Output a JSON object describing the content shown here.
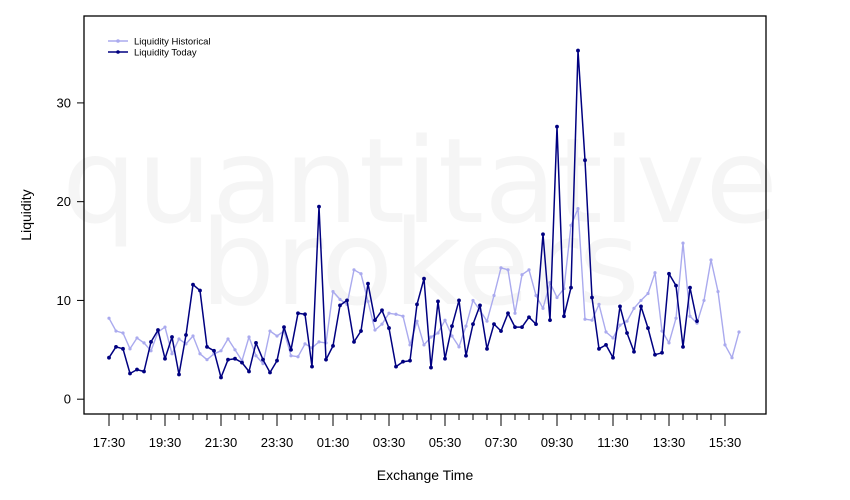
{
  "watermark": {
    "line1": "quantitative",
    "line2": "brokers"
  },
  "chart_data": {
    "type": "line",
    "xlabel": "Exchange Time",
    "ylabel": "Liquidity",
    "ylim": [
      -1.5,
      38.8
    ],
    "yticks": [
      0,
      10,
      20,
      30
    ],
    "xtick_labels": [
      "17:30",
      "19:30",
      "21:30",
      "23:30",
      "01:30",
      "03:30",
      "05:30",
      "07:30",
      "09:30",
      "11:30",
      "13:30",
      "15:30"
    ],
    "x_interval": "15min",
    "grid": false,
    "legend_position": "top-left",
    "series": [
      {
        "name": "Liquidity Historical",
        "color": "#aaaaee",
        "values": [
          8.2,
          6.9,
          6.7,
          5.1,
          6.2,
          5.7,
          4.9,
          6.8,
          7.3,
          4.6,
          6.1,
          5.6,
          6.4,
          4.6,
          4.0,
          4.6,
          4.9,
          6.1,
          5.0,
          3.9,
          6.3,
          4.4,
          3.6,
          6.9,
          6.4,
          6.9,
          4.4,
          4.3,
          5.6,
          5.2,
          5.8,
          5.7,
          10.9,
          10.1,
          9.6,
          13.1,
          12.7,
          9.9,
          7.0,
          7.6,
          8.7,
          8.6,
          8.4,
          5.5,
          7.9,
          5.5,
          6.3,
          6.7,
          8.0,
          6.4,
          5.3,
          7.4,
          10.0,
          9.0,
          7.9,
          10.5,
          13.3,
          13.1,
          8.7,
          12.6,
          13.1,
          10.5,
          9.2,
          11.8,
          10.3,
          11.2,
          17.6,
          19.3,
          8.1,
          8.0,
          9.6,
          6.8,
          6.2,
          7.5,
          7.9,
          9.2,
          10.0,
          10.7,
          12.8,
          6.9,
          5.7,
          8.2,
          15.8,
          8.4,
          7.7,
          10.0,
          14.1,
          10.9,
          5.5,
          4.2,
          6.8
        ]
      },
      {
        "name": "Liquidity Today",
        "color": "#000080",
        "values": [
          4.2,
          5.3,
          5.1,
          2.6,
          3.0,
          2.8,
          5.8,
          7.0,
          4.1,
          6.3,
          2.5,
          6.5,
          11.6,
          11.0,
          5.3,
          4.9,
          2.2,
          4.0,
          4.1,
          3.7,
          2.8,
          5.7,
          4.0,
          2.7,
          3.9,
          7.3,
          5.0,
          8.7,
          8.6,
          3.3,
          19.5,
          4.0,
          5.4,
          9.5,
          10.0,
          5.8,
          6.9,
          11.7,
          8.0,
          9.0,
          7.2,
          3.3,
          3.8,
          3.9,
          9.6,
          12.2,
          3.2,
          9.9,
          4.1,
          7.4,
          10.0,
          4.4,
          7.6,
          9.5,
          5.1,
          7.6,
          6.9,
          8.7,
          7.3,
          7.3,
          8.3,
          7.6,
          16.7,
          8.0,
          27.6,
          8.4,
          11.3,
          35.3,
          24.2,
          10.3,
          5.1,
          5.5,
          4.2,
          9.4,
          6.7,
          4.8,
          9.4,
          7.2,
          4.5,
          4.7,
          12.7,
          11.5,
          5.3,
          11.3,
          7.9
        ]
      }
    ]
  }
}
